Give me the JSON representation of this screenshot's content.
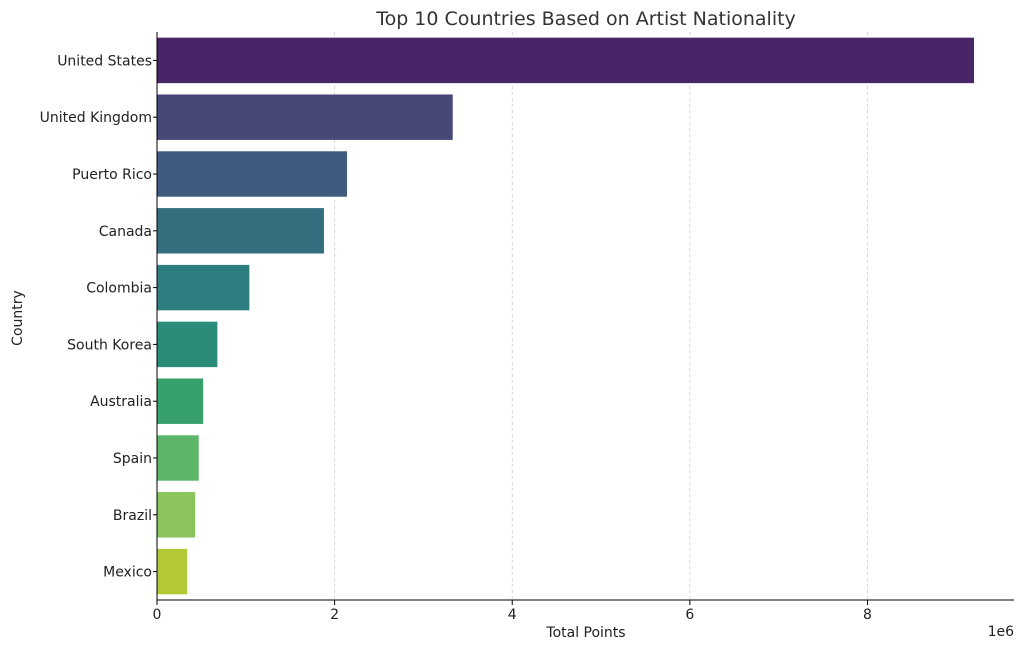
{
  "chart_data": {
    "type": "bar",
    "orientation": "horizontal",
    "title": "Top 10 Countries Based on Artist Nationality",
    "xlabel": "Total Points",
    "ylabel": "Country",
    "x_scale_label": "1e6",
    "xlim": [
      0,
      9.65
    ],
    "xticks": [
      "0",
      "2",
      "4",
      "6",
      "8"
    ],
    "xtick_values": [
      0,
      2,
      4,
      6,
      8
    ],
    "grid": "vertical dashed",
    "categories": [
      "United States",
      "United Kingdom",
      "Puerto Rico",
      "Canada",
      "Colombia",
      "South Korea",
      "Australia",
      "Spain",
      "Brazil",
      "Mexico"
    ],
    "values": [
      9.2,
      3.33,
      2.14,
      1.88,
      1.04,
      0.68,
      0.52,
      0.47,
      0.43,
      0.34
    ],
    "colors": [
      "#482566",
      "#484878",
      "#405b80",
      "#366e80",
      "#2e7d80",
      "#2b8c7a",
      "#37a06b",
      "#5db56a",
      "#8bc45a",
      "#b3c834"
    ]
  }
}
